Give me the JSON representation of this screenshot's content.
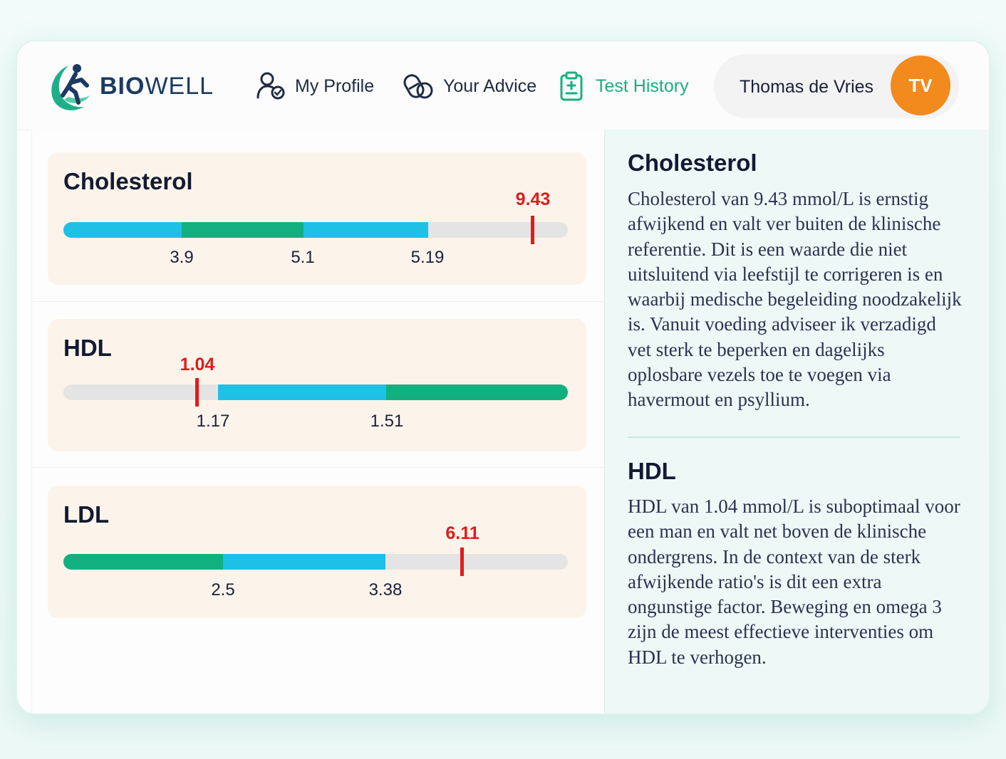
{
  "header": {
    "brand_bold": "BIO",
    "brand_light": "WELL",
    "nav": [
      {
        "label": "My Profile",
        "icon": "profile-icon"
      },
      {
        "label": "Your Advice",
        "icon": "capsule-icon"
      },
      {
        "label": "Test History",
        "icon": "clipboard-icon",
        "active": true
      }
    ],
    "user": {
      "name": "Thomas de Vries",
      "initials": "TV"
    }
  },
  "markers": {
    "cholesterol": {
      "title": "Cholesterol",
      "value": "9.43",
      "ticks": [
        "3.9",
        "5.1",
        "5.19"
      ]
    },
    "hdl": {
      "title": "HDL",
      "value": "1.04",
      "ticks": [
        "1.17",
        "1.51"
      ]
    },
    "ldl": {
      "title": "LDL",
      "value": "6.11",
      "ticks": [
        "2.5",
        "3.38"
      ]
    }
  },
  "advice": [
    {
      "title": "Cholesterol",
      "text": "Cholesterol van 9.43 mmol/L is ernstig afwijkend en valt ver buiten de klinische referentie. Dit is een waarde die niet uitsluitend via leefstijl te corrigeren is en waarbij medische begeleiding noodzakelijk is. Vanuit voeding adviseer ik verzadigd vet sterk te beperken en dagelijks oplosbare vezels toe te voegen via havermout en psyllium."
    },
    {
      "title": "HDL",
      "text": "HDL van 1.04 mmol/L is suboptimaal voor een man en valt net boven de klinische ondergrens. In de context van de sterk afwijkende ratio's is dit een extra ongunstige factor. Beweging en omega 3 zijn de meest effectieve interventies om HDL te verhogen."
    }
  ],
  "colors": {
    "accent_green": "#19b07c",
    "range_blue": "#1ec0e6",
    "range_green": "#12b07f",
    "marker_red": "#e01c1c",
    "avatar_orange": "#f28a1e"
  }
}
